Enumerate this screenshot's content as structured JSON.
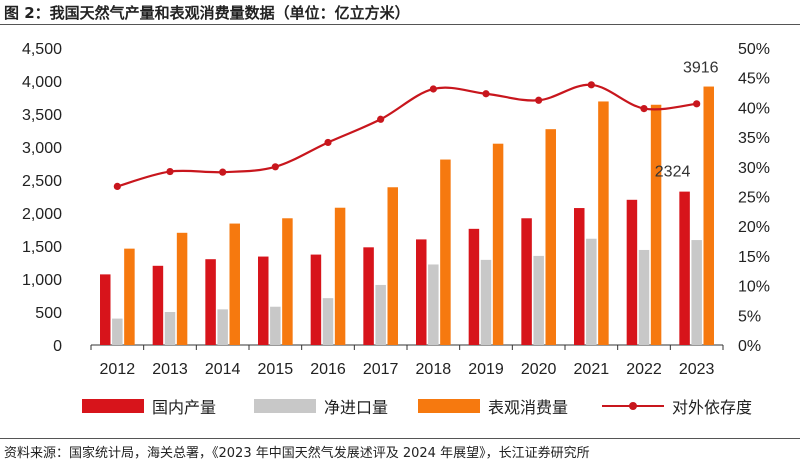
{
  "header": {
    "title": "图 2：我国天然气产量和表观消费量数据（单位：亿立方米）"
  },
  "footer": {
    "source": "资料来源：国家统计局，海关总署，《2023 年中国天然气发展述评及 2024 年展望》，长江证券研究所"
  },
  "chart_data": {
    "type": "bar",
    "categories": [
      "2012",
      "2013",
      "2014",
      "2015",
      "2016",
      "2017",
      "2018",
      "2019",
      "2020",
      "2021",
      "2022",
      "2023"
    ],
    "series": [
      {
        "name": "国内产量",
        "type": "bar",
        "axis": "left",
        "color": "#d7141b",
        "values": [
          1070,
          1200,
          1300,
          1340,
          1370,
          1480,
          1600,
          1760,
          1920,
          2075,
          2200,
          2324
        ]
      },
      {
        "name": "净进口量",
        "type": "bar",
        "axis": "left",
        "color": "#c8c8c8",
        "values": [
          400,
          500,
          540,
          580,
          710,
          910,
          1220,
          1290,
          1350,
          1610,
          1440,
          1590
        ]
      },
      {
        "name": "表观消费量",
        "type": "bar",
        "axis": "left",
        "color": "#f6790f",
        "values": [
          1460,
          1700,
          1840,
          1920,
          2080,
          2390,
          2810,
          3050,
          3270,
          3690,
          3640,
          3916
        ]
      },
      {
        "name": "对外依存度",
        "type": "line",
        "axis": "right",
        "color": "#c8161d",
        "values": [
          26.7,
          29.2,
          29.1,
          30.0,
          34.1,
          38.0,
          43.1,
          42.3,
          41.2,
          43.8,
          39.8,
          40.6
        ]
      }
    ],
    "ylim": [
      0,
      4500
    ],
    "yticks": [
      "0",
      "500",
      "1,000",
      "1,500",
      "2,000",
      "2,500",
      "3,000",
      "3,500",
      "4,000",
      "4,500"
    ],
    "y2lim": [
      0,
      50
    ],
    "y2ticks": [
      "0%",
      "5%",
      "10%",
      "15%",
      "20%",
      "25%",
      "30%",
      "35%",
      "40%",
      "45%",
      "50%"
    ],
    "data_labels": [
      "3916",
      "2324"
    ],
    "legend_position": "bottom",
    "grid": false
  }
}
